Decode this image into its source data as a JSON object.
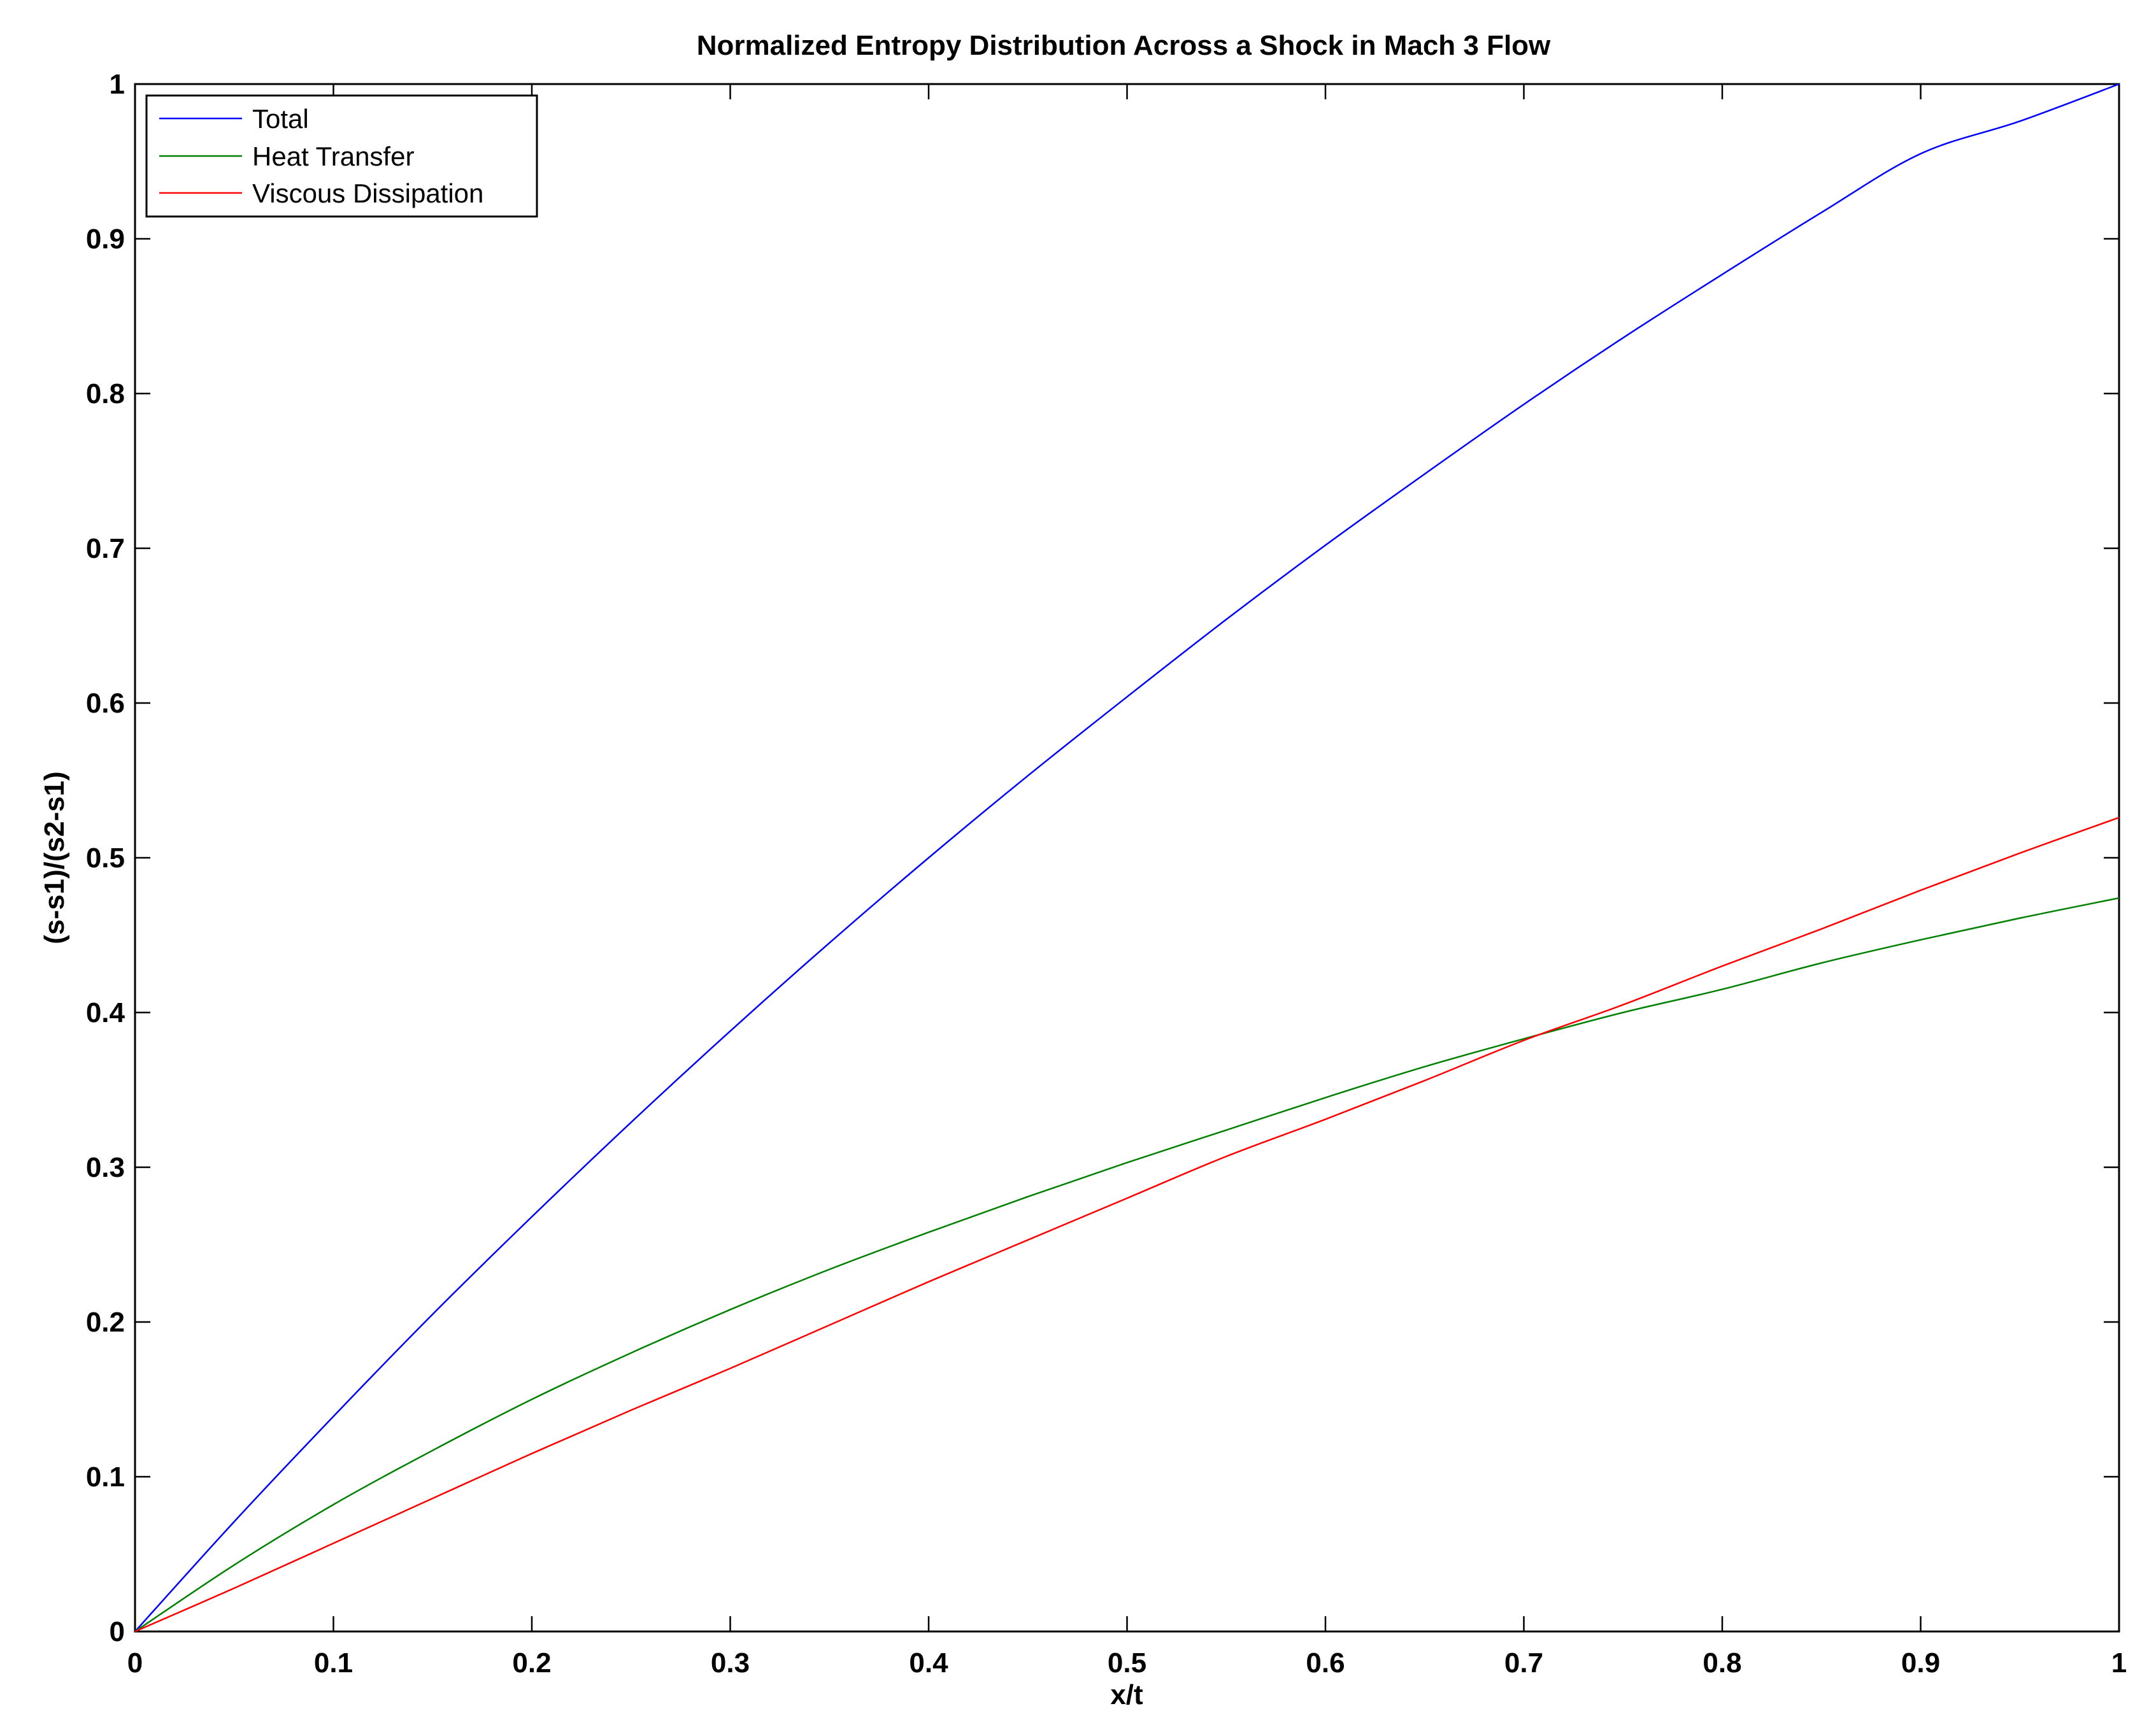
{
  "chart_data": {
    "type": "line",
    "title": "Normalized Entropy Distribution Across a Shock in Mach 3 Flow",
    "xlabel": "x/t",
    "ylabel": "(s-s1)/(s2-s1)",
    "xlim": [
      0,
      1
    ],
    "ylim": [
      0,
      1
    ],
    "xticks": [
      0,
      0.1,
      0.2,
      0.3,
      0.4,
      0.5,
      0.6,
      0.7,
      0.8,
      0.9,
      1
    ],
    "xtick_labels": [
      "0",
      "0.1",
      "0.2",
      "0.3",
      "0.4",
      "0.5",
      "0.6",
      "0.7",
      "0.8",
      "0.9",
      "1"
    ],
    "yticks": [
      0,
      0.1,
      0.2,
      0.3,
      0.4,
      0.5,
      0.6,
      0.7,
      0.8,
      0.9,
      1
    ],
    "ytick_labels": [
      "0",
      "0.1",
      "0.2",
      "0.3",
      "0.4",
      "0.5",
      "0.6",
      "0.7",
      "0.8",
      "0.9",
      "1"
    ],
    "grid": false,
    "legend_position": "top-left",
    "x": [
      0,
      0.05,
      0.1,
      0.15,
      0.2,
      0.25,
      0.3,
      0.35,
      0.4,
      0.45,
      0.5,
      0.55,
      0.6,
      0.65,
      0.7,
      0.75,
      0.8,
      0.85,
      0.9,
      0.95,
      1
    ],
    "series": [
      {
        "name": "Total",
        "color": "#0000ff",
        "values": [
          0,
          0.071,
          0.139,
          0.205,
          0.268,
          0.329,
          0.388,
          0.445,
          0.5,
          0.553,
          0.604,
          0.654,
          0.702,
          0.748,
          0.793,
          0.836,
          0.877,
          0.917,
          0.955,
          0.976,
          1.0
        ]
      },
      {
        "name": "Heat Transfer",
        "color": "#008000",
        "values": [
          0,
          0.043,
          0.082,
          0.117,
          0.15,
          0.18,
          0.208,
          0.234,
          0.258,
          0.281,
          0.303,
          0.324,
          0.345,
          0.365,
          0.383,
          0.4,
          0.415,
          0.432,
          0.447,
          0.461,
          0.474
        ]
      },
      {
        "name": "Viscous Dissipation",
        "color": "#ff0000",
        "values": [
          0,
          0.028,
          0.057,
          0.086,
          0.115,
          0.143,
          0.17,
          0.198,
          0.226,
          0.253,
          0.28,
          0.307,
          0.331,
          0.356,
          0.382,
          0.405,
          0.43,
          0.454,
          0.479,
          0.503,
          0.526
        ]
      }
    ]
  }
}
